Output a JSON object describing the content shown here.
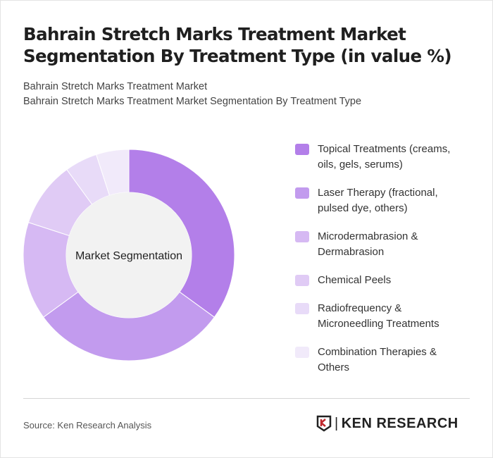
{
  "title": "Bahrain Stretch Marks Treatment Market Segmentation By Treatment Type (in value %)",
  "subtitle1": "Bahrain Stretch Marks Treatment Market",
  "subtitle2": "Bahrain Stretch Marks Treatment Market Segmentation By Treatment Type",
  "source": "Source: Ken Research Analysis",
  "logo_text": "KEN RESEARCH",
  "chart_data": {
    "type": "pie",
    "center_label": "Market Segmentation",
    "legend_position": "right",
    "categories": [
      "Topical Treatments (creams, oils, gels, serums)",
      "Laser Therapy (fractional, pulsed dye, others)",
      "Microdermabrasion & Dermabrasion",
      "Chemical Peels",
      "Radiofrequency & Microneedling Treatments",
      "Combination Therapies & Others"
    ],
    "values": [
      35,
      30,
      15,
      10,
      5,
      5
    ],
    "colors": [
      "#b37fe9",
      "#c29bee",
      "#d6b9f3",
      "#e0cbf5",
      "#e8dbf8",
      "#f1eafa"
    ]
  }
}
